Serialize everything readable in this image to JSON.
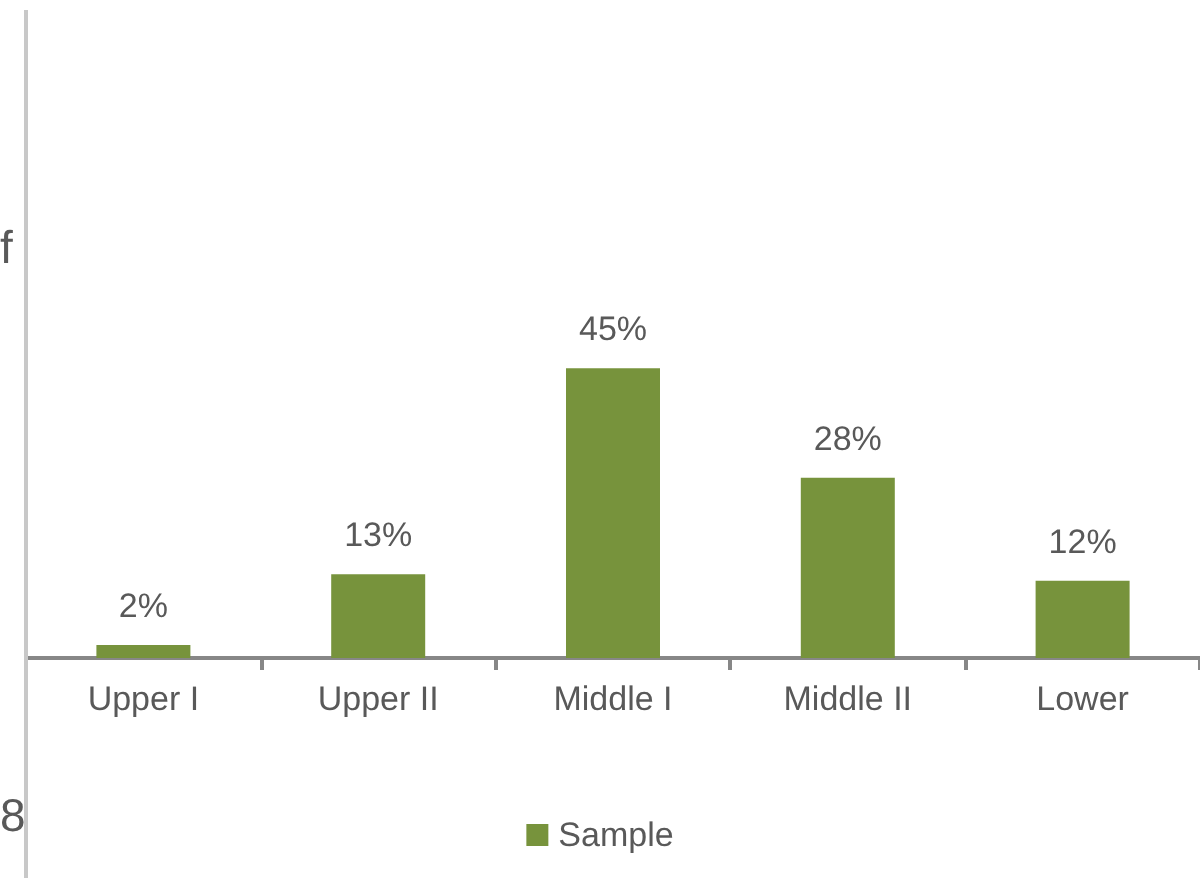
{
  "chart_data": {
    "type": "bar",
    "categories": [
      "Upper I",
      "Upper II",
      "Middle I",
      "Middle II",
      "Lower"
    ],
    "series": [
      {
        "name": "Sample",
        "color": "#77933c",
        "values": [
          2,
          13,
          45,
          28,
          12
        ],
        "value_labels": [
          "2%",
          "13%",
          "45%",
          "28%",
          "12%"
        ]
      }
    ],
    "ylim": [
      0,
      100
    ],
    "tick_labels": "x",
    "legend": "bottom",
    "annotations": [
      "f",
      "8"
    ]
  }
}
